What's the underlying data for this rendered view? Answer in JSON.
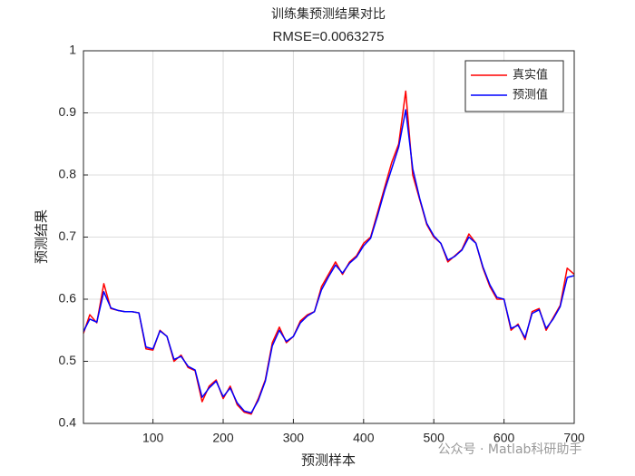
{
  "chart_data": {
    "type": "line",
    "title": "训练集预测结果对比",
    "subtitle": "RMSE=0.0063275",
    "x_label": "预测样本",
    "y_label": "预测结果",
    "watermark": "公众号 · Matlab科研助手",
    "x": [
      1,
      10,
      20,
      30,
      40,
      50,
      60,
      70,
      80,
      90,
      100,
      110,
      120,
      130,
      140,
      150,
      160,
      170,
      180,
      190,
      200,
      210,
      220,
      230,
      240,
      250,
      260,
      270,
      280,
      290,
      300,
      310,
      320,
      330,
      340,
      350,
      360,
      370,
      380,
      390,
      400,
      410,
      420,
      430,
      440,
      450,
      460,
      470,
      480,
      490,
      500,
      510,
      520,
      530,
      540,
      550,
      560,
      570,
      580,
      590,
      600,
      610,
      620,
      630,
      640,
      650,
      660,
      670,
      680,
      690,
      700
    ],
    "series": [
      {
        "name": "真实值",
        "color": "#ff0000",
        "values": [
          0.545,
          0.575,
          0.562,
          0.625,
          0.585,
          0.582,
          0.58,
          0.58,
          0.578,
          0.52,
          0.518,
          0.55,
          0.54,
          0.5,
          0.51,
          0.49,
          0.485,
          0.435,
          0.46,
          0.47,
          0.44,
          0.46,
          0.43,
          0.418,
          0.415,
          0.44,
          0.47,
          0.53,
          0.555,
          0.53,
          0.54,
          0.565,
          0.575,
          0.58,
          0.62,
          0.64,
          0.66,
          0.64,
          0.66,
          0.67,
          0.69,
          0.7,
          0.74,
          0.78,
          0.82,
          0.85,
          0.935,
          0.8,
          0.76,
          0.72,
          0.7,
          0.69,
          0.66,
          0.67,
          0.68,
          0.705,
          0.69,
          0.65,
          0.62,
          0.6,
          0.6,
          0.55,
          0.56,
          0.535,
          0.58,
          0.585,
          0.55,
          0.57,
          0.59,
          0.65,
          0.64
        ]
      },
      {
        "name": "预测值",
        "color": "#0000ff",
        "values": [
          0.548,
          0.568,
          0.563,
          0.612,
          0.586,
          0.582,
          0.58,
          0.58,
          0.578,
          0.523,
          0.52,
          0.549,
          0.54,
          0.503,
          0.508,
          0.492,
          0.486,
          0.442,
          0.457,
          0.468,
          0.443,
          0.457,
          0.433,
          0.42,
          0.417,
          0.437,
          0.468,
          0.525,
          0.55,
          0.532,
          0.54,
          0.562,
          0.573,
          0.58,
          0.615,
          0.636,
          0.655,
          0.642,
          0.658,
          0.668,
          0.686,
          0.698,
          0.735,
          0.775,
          0.81,
          0.845,
          0.905,
          0.81,
          0.762,
          0.722,
          0.702,
          0.69,
          0.663,
          0.669,
          0.679,
          0.7,
          0.69,
          0.652,
          0.623,
          0.603,
          0.6,
          0.553,
          0.558,
          0.538,
          0.577,
          0.583,
          0.553,
          0.568,
          0.588,
          0.635,
          0.638
        ]
      }
    ],
    "xlim": [
      1,
      700
    ],
    "ylim": [
      0.4,
      1
    ],
    "xticks": [
      100,
      200,
      300,
      400,
      500,
      600,
      700
    ],
    "yticks": [
      0.4,
      0.5,
      0.6,
      0.7,
      0.8,
      0.9,
      1
    ],
    "grid": true,
    "legend": "upper right"
  }
}
